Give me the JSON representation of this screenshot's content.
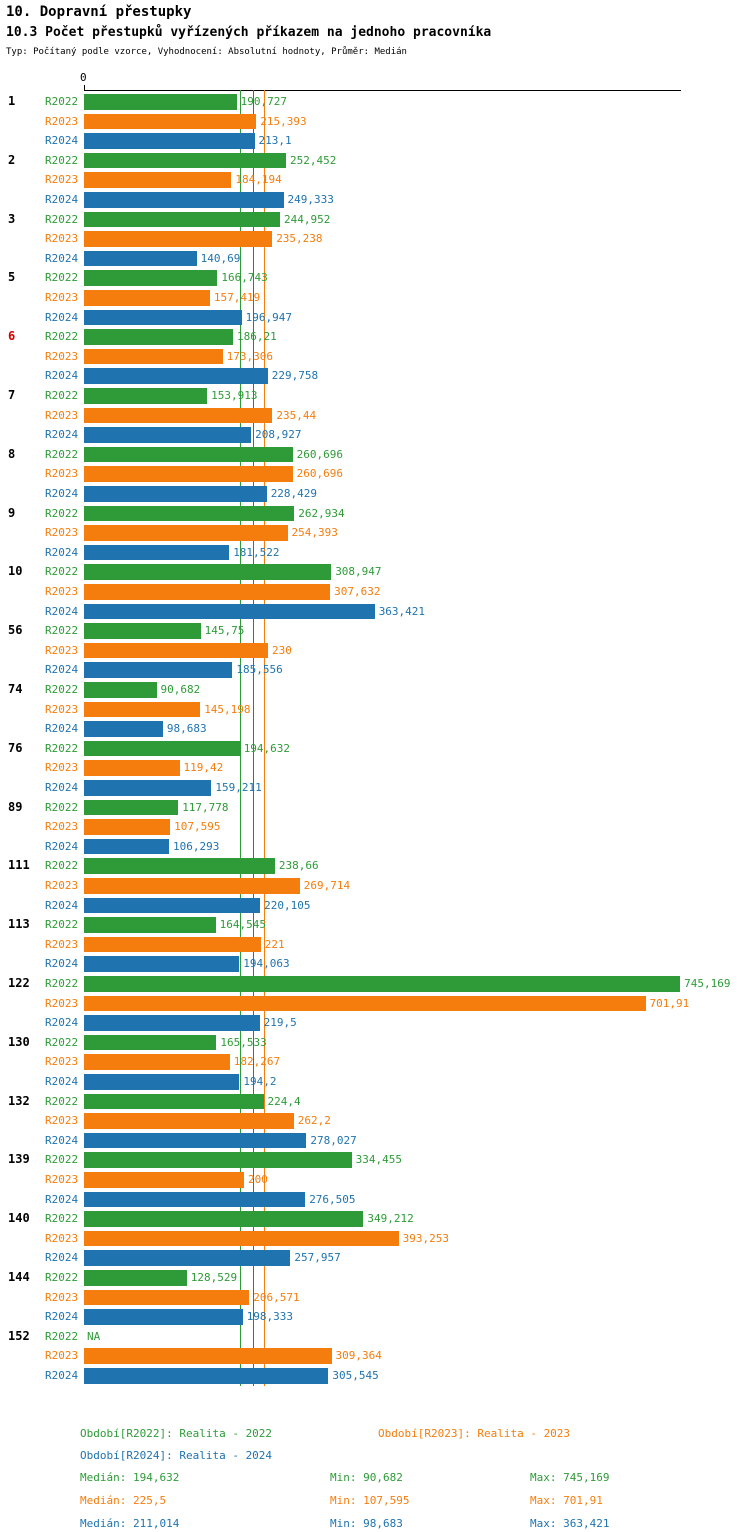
{
  "header": {
    "title": "10. Dopravní přestupky",
    "subtitle": "10.3 Počet přestupků vyřízených příkazem na jednoho pracovníka",
    "meta": "Typ: Počítaný podle vzorce, Vyhodnocení: Absolutní hodnoty, Průměr: Medián"
  },
  "axis": {
    "zero_label": "0"
  },
  "colors": {
    "r2022": "#2e9b38",
    "r2023": "#f57d0d",
    "r2024": "#1f73ae",
    "highlight_red": "#d40000",
    "axis": "#000000"
  },
  "chart_data": {
    "type": "bar",
    "orientation": "horizontal",
    "title": "10.3 Počet přestupků vyřízených příkazem na jednoho pracovníka",
    "xlim": [
      0,
      745.169
    ],
    "grid": false,
    "series_names": [
      "R2022",
      "R2023",
      "R2024"
    ],
    "medians": {
      "R2022": 194.632,
      "R2023": 225.5,
      "R2024": 211.014
    },
    "mins": {
      "R2022": 90.682,
      "R2023": 107.595,
      "R2024": 98.683
    },
    "maxs": {
      "R2022": 745.169,
      "R2023": 701.91,
      "R2024": 363.421
    },
    "groups": [
      {
        "label": "1",
        "highlight": false,
        "values": [
          190.727,
          215.393,
          213.1
        ],
        "display": [
          "190,727",
          "215,393",
          "213,1"
        ]
      },
      {
        "label": "2",
        "highlight": false,
        "values": [
          252.452,
          184.194,
          249.333
        ],
        "display": [
          "252,452",
          "184,194",
          "249,333"
        ]
      },
      {
        "label": "3",
        "highlight": false,
        "values": [
          244.952,
          235.238,
          140.69
        ],
        "display": [
          "244,952",
          "235,238",
          "140,69"
        ]
      },
      {
        "label": "5",
        "highlight": false,
        "values": [
          166.743,
          157.419,
          196.947
        ],
        "display": [
          "166,743",
          "157,419",
          "196,947"
        ]
      },
      {
        "label": "6",
        "highlight": true,
        "values": [
          186.21,
          173.306,
          229.758
        ],
        "display": [
          "186,21",
          "173,306",
          "229,758"
        ]
      },
      {
        "label": "7",
        "highlight": false,
        "values": [
          153.913,
          235.44,
          208.927
        ],
        "display": [
          "153,913",
          "235,44",
          "208,927"
        ]
      },
      {
        "label": "8",
        "highlight": false,
        "values": [
          260.696,
          260.696,
          228.429
        ],
        "display": [
          "260,696",
          "260,696",
          "228,429"
        ]
      },
      {
        "label": "9",
        "highlight": false,
        "values": [
          262.934,
          254.393,
          181.522
        ],
        "display": [
          "262,934",
          "254,393",
          "181,522"
        ]
      },
      {
        "label": "10",
        "highlight": false,
        "values": [
          308.947,
          307.632,
          363.421
        ],
        "display": [
          "308,947",
          "307,632",
          "363,421"
        ]
      },
      {
        "label": "56",
        "highlight": false,
        "values": [
          145.75,
          230,
          185.556
        ],
        "display": [
          "145,75",
          "230",
          "185,556"
        ]
      },
      {
        "label": "74",
        "highlight": false,
        "values": [
          90.682,
          145.198,
          98.683
        ],
        "display": [
          "90,682",
          "145,198",
          "98,683"
        ]
      },
      {
        "label": "76",
        "highlight": false,
        "values": [
          194.632,
          119.42,
          159.211
        ],
        "display": [
          "194,632",
          "119,42",
          "159,211"
        ]
      },
      {
        "label": "89",
        "highlight": false,
        "values": [
          117.778,
          107.595,
          106.293
        ],
        "display": [
          "117,778",
          "107,595",
          "106,293"
        ]
      },
      {
        "label": "111",
        "highlight": false,
        "values": [
          238.66,
          269.714,
          220.105
        ],
        "display": [
          "238,66",
          "269,714",
          "220,105"
        ]
      },
      {
        "label": "113",
        "highlight": false,
        "values": [
          164.545,
          221,
          194.063
        ],
        "display": [
          "164,545",
          "221",
          "194,063"
        ]
      },
      {
        "label": "122",
        "highlight": false,
        "values": [
          745.169,
          701.91,
          219.5
        ],
        "display": [
          "745,169",
          "701,91",
          "219,5"
        ]
      },
      {
        "label": "130",
        "highlight": false,
        "values": [
          165.533,
          182.267,
          194.2
        ],
        "display": [
          "165,533",
          "182,267",
          "194,2"
        ]
      },
      {
        "label": "132",
        "highlight": false,
        "values": [
          224.4,
          262.2,
          278.027
        ],
        "display": [
          "224,4",
          "262,2",
          "278,027"
        ]
      },
      {
        "label": "139",
        "highlight": false,
        "values": [
          334.455,
          200,
          276.505
        ],
        "display": [
          "334,455",
          "200",
          "276,505"
        ]
      },
      {
        "label": "140",
        "highlight": false,
        "values": [
          349.212,
          393.253,
          257.957
        ],
        "display": [
          "349,212",
          "393,253",
          "257,957"
        ]
      },
      {
        "label": "144",
        "highlight": false,
        "values": [
          128.529,
          206.571,
          198.333
        ],
        "display": [
          "128,529",
          "206,571",
          "198,333"
        ]
      },
      {
        "label": "152",
        "highlight": false,
        "values": [
          null,
          309.364,
          305.545
        ],
        "display": [
          "NA",
          "309,364",
          "305,545"
        ]
      }
    ]
  },
  "footer": {
    "legend": [
      {
        "key": "r2022",
        "label": "Období[R2022]: Realita - 2022"
      },
      {
        "key": "r2023",
        "label": "Období[R2023]: Realita - 2023"
      },
      {
        "key": "r2024",
        "label": "Období[R2024]: Realita - 2024"
      }
    ],
    "stats": [
      {
        "key": "r2022",
        "median": "Medián: 194,632",
        "min": "Min: 90,682",
        "max": "Max: 745,169"
      },
      {
        "key": "r2023",
        "median": "Medián: 225,5",
        "min": "Min: 107,595",
        "max": "Max: 701,91"
      },
      {
        "key": "r2024",
        "median": "Medián: 211,014",
        "min": "Min: 98,683",
        "max": "Max: 363,421"
      }
    ]
  }
}
